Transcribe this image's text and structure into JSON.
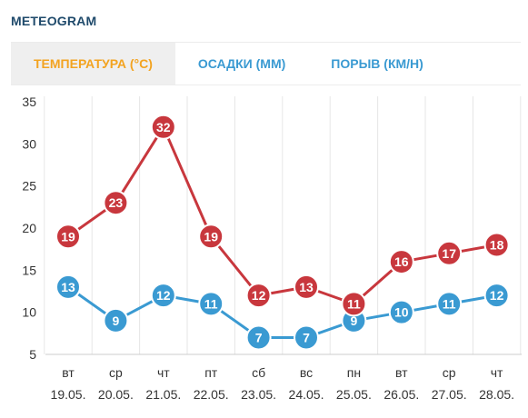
{
  "title": "METEOGRAM",
  "tabs": [
    {
      "label": "ТЕМПЕРАТУРА (°C)",
      "active": true
    },
    {
      "label": "ОСАДКИ (ММ)",
      "active": false
    },
    {
      "label": "ПОРЫВ (КМ/Н)",
      "active": false
    }
  ],
  "colors": {
    "title": "#1f4a6b",
    "tab_active": "#f3a320",
    "tab_inactive": "#3a9ad2",
    "series_high": "#c8373d",
    "series_low": "#3a9ad2",
    "grid": "#e6e6e6",
    "axis_text": "#333333"
  },
  "chart_data": {
    "type": "line",
    "categories": [
      {
        "day": "вт",
        "date": "19.05."
      },
      {
        "day": "ср",
        "date": "20.05."
      },
      {
        "day": "чт",
        "date": "21.05."
      },
      {
        "day": "пт",
        "date": "22.05."
      },
      {
        "day": "сб",
        "date": "23.05."
      },
      {
        "day": "вс",
        "date": "24.05."
      },
      {
        "day": "пн",
        "date": "25.05."
      },
      {
        "day": "вт",
        "date": "26.05."
      },
      {
        "day": "ср",
        "date": "27.05."
      },
      {
        "day": "чт",
        "date": "28.05."
      }
    ],
    "series": [
      {
        "values": [
          19,
          23,
          32,
          19,
          12,
          13,
          11,
          16,
          17,
          18
        ],
        "color": "#c8373d"
      },
      {
        "values": [
          13,
          9,
          12,
          11,
          7,
          7,
          9,
          10,
          11,
          12
        ],
        "color": "#3a9ad2"
      }
    ],
    "ylim": [
      5,
      35
    ],
    "yticks": [
      5,
      10,
      15,
      20,
      25,
      30,
      35
    ],
    "grid": "vertical",
    "data_labels": true
  }
}
